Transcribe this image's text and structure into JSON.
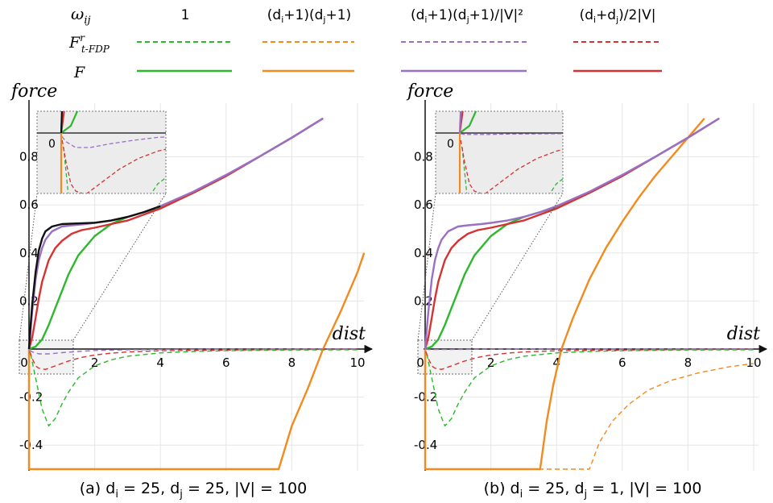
{
  "legend": {
    "row_labels": {
      "weight": "ωij",
      "f_trfdp": "Frt-FDP",
      "f": "F"
    },
    "columns": [
      {
        "label": "1",
        "color": "#2db82d"
      },
      {
        "label": "(di+1)(dj+1)",
        "color": "#f28a1e"
      },
      {
        "label": "(di+1)(dj+1)/|V|²",
        "color": "#9b6fc4"
      },
      {
        "label": "(di+dj)/2|V|",
        "color": "#d63232"
      }
    ]
  },
  "chart_data": [
    {
      "type": "line",
      "caption": "(a) di = 25, dj = 25, |V| = 100",
      "xlabel": "dist",
      "ylabel": "force",
      "xlim": [
        0,
        10.4
      ],
      "ylim": [
        -0.5,
        0.95
      ],
      "xticks": [
        0,
        2,
        4,
        6,
        8,
        10
      ],
      "yticks": [
        -0.4,
        -0.2,
        0.2,
        0.4,
        0.6,
        0.8
      ],
      "grid": true,
      "series": [
        {
          "color": "#2db82d",
          "style": "solid",
          "x": [
            0,
            0.2,
            0.4,
            0.6,
            0.8,
            1.0,
            1.2,
            1.5,
            2.0,
            2.5,
            3.0,
            3.5,
            4.0,
            5.0,
            6.0,
            7.0,
            8.0,
            8.95
          ],
          "y": [
            0,
            0.01,
            0.04,
            0.1,
            0.17,
            0.24,
            0.31,
            0.39,
            0.47,
            0.52,
            0.55,
            0.57,
            0.59,
            0.65,
            0.72,
            0.8,
            0.88,
            0.96
          ]
        },
        {
          "color": "#2db82d",
          "style": "dashed",
          "x": [
            0.05,
            0.2,
            0.4,
            0.6,
            0.8,
            1.0,
            1.2,
            1.5,
            2.0,
            2.5,
            3.0,
            4.0,
            5.0,
            6.0,
            8.0,
            10.0
          ],
          "y": [
            -0.02,
            -0.12,
            -0.25,
            -0.32,
            -0.29,
            -0.23,
            -0.18,
            -0.12,
            -0.07,
            -0.045,
            -0.03,
            -0.016,
            -0.01,
            -0.007,
            -0.004,
            -0.003
          ]
        },
        {
          "color": "#f28a1e",
          "style": "solid",
          "x": [
            0,
            0.0,
            7.6,
            8.0,
            8.5,
            8.95,
            9.5,
            10.0,
            10.2
          ],
          "y": [
            0,
            -0.5,
            -0.5,
            -0.32,
            -0.16,
            0,
            0.16,
            0.32,
            0.4
          ]
        },
        {
          "color": "#d63232",
          "style": "solid",
          "x": [
            0,
            0.1,
            0.2,
            0.3,
            0.4,
            0.6,
            0.8,
            1.0,
            1.3,
            1.6,
            2.0,
            2.5,
            3.0,
            3.5,
            4.0,
            5.0,
            6.0,
            7.0,
            8.0,
            8.95
          ],
          "y": [
            0,
            0.05,
            0.13,
            0.21,
            0.28,
            0.37,
            0.42,
            0.45,
            0.48,
            0.495,
            0.505,
            0.52,
            0.535,
            0.56,
            0.585,
            0.65,
            0.72,
            0.8,
            0.88,
            0.96
          ]
        },
        {
          "color": "#d63232",
          "style": "dashed",
          "x": [
            0.02,
            0.1,
            0.2,
            0.3,
            0.5,
            0.8,
            1.2,
            1.6,
            2.0,
            2.5,
            3.0,
            4.0,
            6.0,
            8.0,
            10.0
          ],
          "y": [
            -0.01,
            -0.04,
            -0.07,
            -0.08,
            -0.085,
            -0.07,
            -0.05,
            -0.035,
            -0.025,
            -0.017,
            -0.012,
            -0.007,
            -0.004,
            -0.002,
            -0.001
          ]
        },
        {
          "color": "#9b6fc4",
          "style": "solid",
          "x": [
            0,
            0.05,
            0.1,
            0.2,
            0.3,
            0.4,
            0.5,
            0.7,
            1.0,
            1.3,
            1.7,
            2.0,
            2.5,
            3.0,
            3.5,
            4.0,
            5.0,
            6.0,
            7.0,
            8.0,
            8.95
          ],
          "y": [
            0,
            0.08,
            0.16,
            0.29,
            0.37,
            0.42,
            0.455,
            0.49,
            0.51,
            0.515,
            0.52,
            0.525,
            0.535,
            0.55,
            0.57,
            0.595,
            0.655,
            0.725,
            0.8,
            0.88,
            0.96
          ]
        },
        {
          "color": "#9b6fc4",
          "style": "dashed",
          "x": [
            0.02,
            0.1,
            0.3,
            0.6,
            1.0,
            1.5,
            2.0,
            3.0,
            5.0,
            10.0
          ],
          "y": [
            -0.005,
            -0.012,
            -0.02,
            -0.02,
            -0.015,
            -0.01,
            -0.006,
            -0.003,
            -0.0015,
            -0.0005
          ]
        },
        {
          "color": "#111111",
          "style": "solid",
          "x": [
            0,
            0.05,
            0.1,
            0.2,
            0.3,
            0.4,
            0.5,
            0.7,
            1.0,
            1.3,
            1.7,
            2.0,
            2.5,
            3.0,
            3.5,
            4.0
          ],
          "y": [
            0,
            0.1,
            0.19,
            0.32,
            0.41,
            0.46,
            0.49,
            0.51,
            0.52,
            0.522,
            0.524,
            0.526,
            0.535,
            0.55,
            0.57,
            0.595
          ]
        }
      ]
    },
    {
      "type": "line",
      "caption": "(b) di = 25, dj = 1, |V| = 100",
      "xlabel": "dist",
      "ylabel": "force",
      "xlim": [
        0,
        10.4
      ],
      "ylim": [
        -0.5,
        0.95
      ],
      "xticks": [
        0,
        2,
        4,
        6,
        8,
        10
      ],
      "yticks": [
        -0.4,
        -0.2,
        0.2,
        0.4,
        0.6,
        0.8
      ],
      "grid": true,
      "series": [
        {
          "color": "#2db82d",
          "style": "solid",
          "x": [
            0,
            0.2,
            0.4,
            0.6,
            0.8,
            1.0,
            1.2,
            1.5,
            2.0,
            2.5,
            3.0,
            3.5,
            4.0,
            5.0,
            6.0,
            7.0,
            8.0,
            8.95
          ],
          "y": [
            0,
            0.01,
            0.04,
            0.1,
            0.17,
            0.24,
            0.31,
            0.39,
            0.47,
            0.52,
            0.55,
            0.57,
            0.59,
            0.65,
            0.72,
            0.8,
            0.88,
            0.96
          ]
        },
        {
          "color": "#2db82d",
          "style": "dashed",
          "x": [
            0.05,
            0.2,
            0.4,
            0.6,
            0.8,
            1.0,
            1.2,
            1.5,
            2.0,
            2.5,
            3.0,
            4.0,
            5.0,
            6.0,
            8.0,
            10.0
          ],
          "y": [
            -0.02,
            -0.12,
            -0.25,
            -0.32,
            -0.29,
            -0.23,
            -0.18,
            -0.12,
            -0.07,
            -0.045,
            -0.03,
            -0.016,
            -0.01,
            -0.007,
            -0.004,
            -0.003
          ]
        },
        {
          "color": "#f28a1e",
          "style": "solid",
          "x": [
            0,
            0.0,
            3.5,
            3.7,
            3.9,
            4.15,
            4.5,
            5.0,
            5.5,
            6.0,
            6.5,
            7.0,
            7.5,
            8.0,
            8.5
          ],
          "y": [
            0,
            -0.5,
            -0.5,
            -0.3,
            -0.15,
            0,
            0.13,
            0.29,
            0.42,
            0.53,
            0.63,
            0.72,
            0.8,
            0.88,
            0.96
          ]
        },
        {
          "color": "#f28a1e",
          "style": "dashed",
          "x": [
            0.0,
            0.0,
            5.0,
            5.3,
            5.7,
            6.2,
            6.8,
            7.5,
            8.3,
            9.2,
            10.0
          ],
          "y": [
            0,
            -0.5,
            -0.5,
            -0.39,
            -0.3,
            -0.23,
            -0.17,
            -0.13,
            -0.1,
            -0.075,
            -0.06
          ]
        },
        {
          "color": "#d63232",
          "style": "solid",
          "x": [
            0,
            0.1,
            0.2,
            0.3,
            0.4,
            0.6,
            0.8,
            1.0,
            1.3,
            1.6,
            2.0,
            2.5,
            3.0,
            3.5,
            4.0,
            5.0,
            6.0,
            7.0,
            8.0,
            8.95
          ],
          "y": [
            0,
            0.05,
            0.13,
            0.21,
            0.28,
            0.37,
            0.42,
            0.45,
            0.48,
            0.495,
            0.505,
            0.52,
            0.535,
            0.56,
            0.585,
            0.65,
            0.72,
            0.8,
            0.88,
            0.96
          ]
        },
        {
          "color": "#d63232",
          "style": "dashed",
          "x": [
            0.02,
            0.1,
            0.2,
            0.3,
            0.5,
            0.8,
            1.2,
            1.6,
            2.0,
            2.5,
            3.0,
            4.0,
            6.0,
            8.0,
            10.0
          ],
          "y": [
            -0.01,
            -0.04,
            -0.07,
            -0.08,
            -0.085,
            -0.07,
            -0.05,
            -0.035,
            -0.025,
            -0.017,
            -0.012,
            -0.007,
            -0.004,
            -0.002,
            -0.001
          ]
        },
        {
          "color": "#9b6fc4",
          "style": "solid",
          "x": [
            0,
            0.05,
            0.1,
            0.2,
            0.3,
            0.4,
            0.5,
            0.7,
            1.0,
            1.3,
            1.7,
            2.0,
            2.5,
            3.0,
            3.5,
            4.0,
            5.0,
            6.0,
            7.0,
            8.0,
            8.95
          ],
          "y": [
            0,
            0.08,
            0.16,
            0.29,
            0.37,
            0.42,
            0.455,
            0.49,
            0.51,
            0.515,
            0.52,
            0.525,
            0.535,
            0.55,
            0.57,
            0.595,
            0.655,
            0.725,
            0.8,
            0.88,
            0.96
          ]
        },
        {
          "color": "#9b6fc4",
          "style": "dashed",
          "x": [
            0.02,
            0.1,
            0.3,
            0.6,
            1.0,
            2.0,
            5.0,
            10.0
          ],
          "y": [
            -0.001,
            -0.002,
            -0.002,
            -0.002,
            -0.0015,
            -0.001,
            -0.0005,
            -0.0002
          ]
        }
      ]
    }
  ]
}
